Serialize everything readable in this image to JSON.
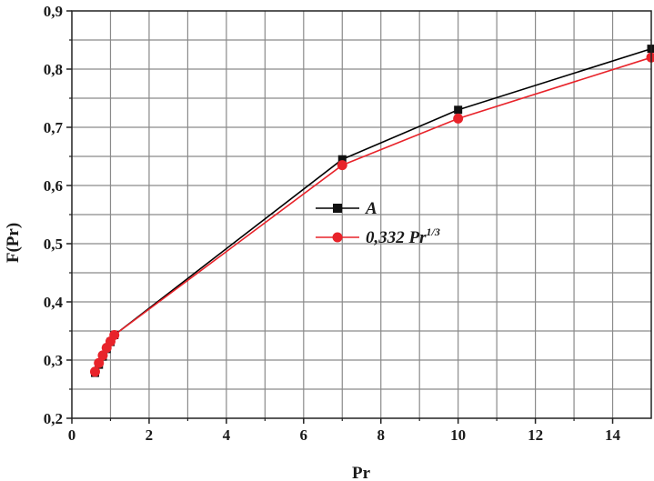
{
  "chart_data": {
    "type": "line",
    "xlabel": "Pr",
    "ylabel": "F(Pr)",
    "xlim": [
      0,
      15
    ],
    "ylim": [
      0.2,
      0.9
    ],
    "xticks": [
      0,
      2,
      4,
      6,
      8,
      10,
      12,
      14
    ],
    "xtick_labels": [
      "0",
      "2",
      "4",
      "6",
      "8",
      "10",
      "12",
      "14"
    ],
    "yticks": [
      0.2,
      0.3,
      0.4,
      0.5,
      0.6,
      0.7,
      0.8,
      0.9
    ],
    "ytick_labels": [
      "0,2",
      "0,3",
      "0,4",
      "0,5",
      "0,6",
      "0,7",
      "0,8",
      "0,9"
    ],
    "grid": true,
    "legend_position": "center",
    "series": [
      {
        "name": "A",
        "color": "#000000",
        "marker": "square",
        "x": [
          0.6,
          0.7,
          0.8,
          0.9,
          1.0,
          1.1,
          7,
          10,
          15
        ],
        "y": [
          0.278,
          0.292,
          0.306,
          0.319,
          0.331,
          0.343,
          0.645,
          0.73,
          0.835
        ]
      },
      {
        "name": "0,332 Pr",
        "name_superscript": "1/3",
        "color": "#e8232a",
        "marker": "circle",
        "x": [
          0.6,
          0.7,
          0.8,
          0.9,
          1.0,
          1.1,
          7,
          10,
          15
        ],
        "y": [
          0.28,
          0.295,
          0.308,
          0.321,
          0.332,
          0.343,
          0.635,
          0.715,
          0.82
        ]
      }
    ]
  }
}
